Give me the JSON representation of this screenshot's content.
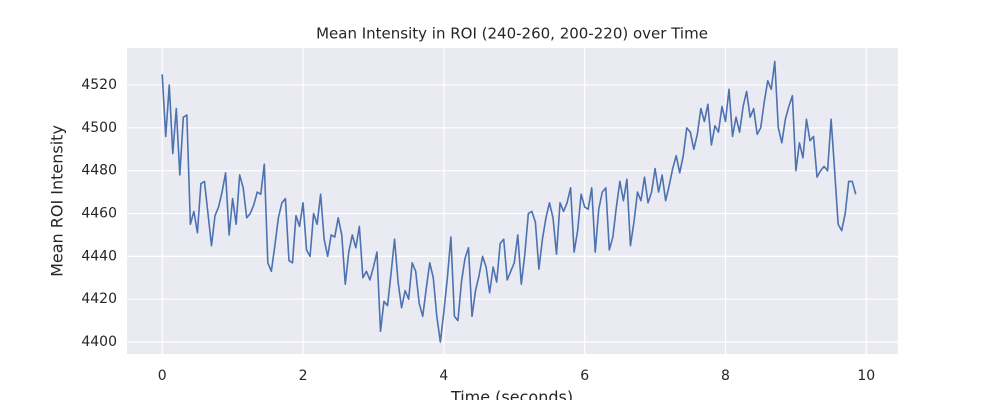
{
  "chart_data": {
    "type": "line",
    "title": "Mean Intensity in ROI (240-260, 200-220) over Time",
    "x_label": "Time (seconds)",
    "y_label": "Mean ROI Intensity",
    "xlim": [
      -0.5,
      10.45
    ],
    "ylim": [
      4394.4,
      4537.3
    ],
    "xticks": [
      0,
      2,
      4,
      6,
      8,
      10
    ],
    "yticks": [
      4400,
      4420,
      4440,
      4460,
      4480,
      4500,
      4520
    ],
    "grid": true,
    "x": [
      0,
      0.05,
      0.1,
      0.15,
      0.2,
      0.25,
      0.3,
      0.35,
      0.4,
      0.45,
      0.5,
      0.55,
      0.6,
      0.65,
      0.7,
      0.75,
      0.8,
      0.85,
      0.9,
      0.95,
      1,
      1.05,
      1.1,
      1.15,
      1.2,
      1.25,
      1.3,
      1.35,
      1.4,
      1.45,
      1.5,
      1.55,
      1.6,
      1.65,
      1.7,
      1.75,
      1.8,
      1.85,
      1.9,
      1.95,
      2,
      2.05,
      2.1,
      2.15,
      2.2,
      2.25,
      2.3,
      2.35,
      2.4,
      2.45,
      2.5,
      2.55,
      2.6,
      2.65,
      2.7,
      2.75,
      2.8,
      2.85,
      2.9,
      2.95,
      3,
      3.05,
      3.1,
      3.15,
      3.2,
      3.25,
      3.3,
      3.35,
      3.4,
      3.45,
      3.5,
      3.55,
      3.6,
      3.65,
      3.7,
      3.75,
      3.8,
      3.85,
      3.9,
      3.95,
      4,
      4.05,
      4.1,
      4.15,
      4.2,
      4.25,
      4.3,
      4.35,
      4.4,
      4.45,
      4.5,
      4.55,
      4.6,
      4.65,
      4.7,
      4.75,
      4.8,
      4.85,
      4.9,
      4.95,
      5,
      5.05,
      5.1,
      5.15,
      5.2,
      5.25,
      5.3,
      5.35,
      5.4,
      5.45,
      5.5,
      5.55,
      5.6,
      5.65,
      5.7,
      5.75,
      5.8,
      5.85,
      5.9,
      5.95,
      6,
      6.05,
      6.1,
      6.15,
      6.2,
      6.25,
      6.3,
      6.35,
      6.4,
      6.45,
      6.5,
      6.55,
      6.6,
      6.65,
      6.7,
      6.75,
      6.8,
      6.85,
      6.9,
      6.95,
      7,
      7.05,
      7.1,
      7.15,
      7.2,
      7.25,
      7.3,
      7.35,
      7.4,
      7.45,
      7.5,
      7.55,
      7.6,
      7.65,
      7.7,
      7.75,
      7.8,
      7.85,
      7.9,
      7.95,
      8,
      8.05,
      8.1,
      8.15,
      8.2,
      8.25,
      8.3,
      8.35,
      8.4,
      8.45,
      8.5,
      8.55,
      8.6,
      8.65,
      8.7,
      8.75,
      8.8,
      8.85,
      8.9,
      8.95,
      9,
      9.05,
      9.1,
      9.15,
      9.2,
      9.25,
      9.3,
      9.35,
      9.4,
      9.45,
      9.5,
      9.55,
      9.6,
      9.65,
      9.7,
      9.75,
      9.8,
      9.85
    ],
    "series": [
      {
        "name": "Mean ROI Intensity",
        "color": "#4c72b0",
        "values": [
          4525,
          4496,
          4520,
          4488,
          4509,
          4478,
          4505,
          4506,
          4455,
          4461,
          4451,
          4474,
          4475,
          4460,
          4445,
          4459,
          4463,
          4470,
          4479,
          4450,
          4467,
          4455,
          4478,
          4472,
          4458,
          4460,
          4464,
          4470,
          4469,
          4483,
          4437,
          4433,
          4445,
          4458,
          4465,
          4467,
          4438,
          4437,
          4459,
          4454,
          4465,
          4443,
          4440,
          4460,
          4455,
          4469,
          4448,
          4440,
          4450,
          4449,
          4458,
          4450,
          4427,
          4442,
          4450,
          4444,
          4454,
          4430,
          4433,
          4429,
          4435,
          4442,
          4405,
          4419,
          4417,
          4432,
          4448,
          4428,
          4416,
          4424,
          4420,
          4437,
          4433,
          4418,
          4412,
          4425,
          4437,
          4430,
          4412,
          4400,
          4414,
          4430,
          4449,
          4412,
          4410,
          4428,
          4439,
          4444,
          4412,
          4424,
          4431,
          4440,
          4435,
          4423,
          4435,
          4428,
          4446,
          4448,
          4429,
          4433,
          4437,
          4450,
          4427,
          4441,
          4460,
          4461,
          4456,
          4434,
          4448,
          4458,
          4465,
          4458,
          4441,
          4465,
          4461,
          4465,
          4472,
          4442,
          4452,
          4469,
          4463,
          4462,
          4472,
          4442,
          4462,
          4470,
          4472,
          4443,
          4449,
          4463,
          4475,
          4466,
          4476,
          4445,
          4456,
          4470,
          4466,
          4477,
          4465,
          4470,
          4481,
          4470,
          4478,
          4466,
          4473,
          4481,
          4487,
          4479,
          4487,
          4500,
          4498,
          4490,
          4497,
          4509,
          4503,
          4511,
          4492,
          4501,
          4498,
          4510,
          4503,
          4518,
          4496,
          4505,
          4498,
          4510,
          4517,
          4505,
          4509,
          4497,
          4500,
          4512,
          4522,
          4518,
          4531,
          4500,
          4493,
          4504,
          4510,
          4515,
          4480,
          4493,
          4486,
          4504,
          4494,
          4496,
          4477,
          4480,
          4482,
          4480,
          4504,
          4480,
          4455,
          4452,
          4460,
          4475,
          4475,
          4469
        ]
      }
    ]
  }
}
